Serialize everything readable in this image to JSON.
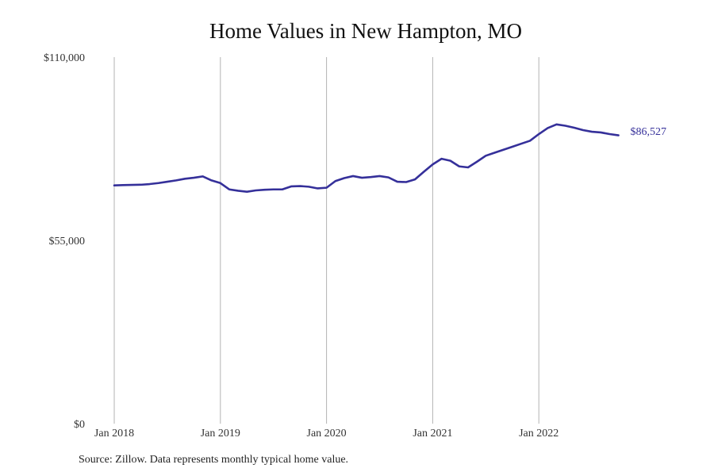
{
  "chart_data": {
    "type": "line",
    "title": "Home Values in New Hampton, MO",
    "xlabel": "",
    "ylabel": "",
    "x_start": "2018-01",
    "x_end": "2022-10",
    "x_ticks": [
      {
        "label": "Jan 2018",
        "date": "2018-01"
      },
      {
        "label": "Jan 2019",
        "date": "2019-01"
      },
      {
        "label": "Jan 2020",
        "date": "2020-01"
      },
      {
        "label": "Jan 2021",
        "date": "2021-01"
      },
      {
        "label": "Jan 2022",
        "date": "2022-01"
      }
    ],
    "y_ticks": [
      {
        "label": "$0",
        "value": 0
      },
      {
        "label": "$55,000",
        "value": 55000
      },
      {
        "label": "$110,000",
        "value": 110000
      }
    ],
    "ylim": [
      0,
      110000
    ],
    "grid": "vertical",
    "line_color": "#35309A",
    "series": [
      {
        "x": [
          "2018-01",
          "2018-02",
          "2018-03",
          "2018-04",
          "2018-05",
          "2018-06",
          "2018-07",
          "2018-08",
          "2018-09",
          "2018-10",
          "2018-11",
          "2018-12",
          "2019-01",
          "2019-02",
          "2019-03",
          "2019-04",
          "2019-05",
          "2019-06",
          "2019-07",
          "2019-08",
          "2019-09",
          "2019-10",
          "2019-11",
          "2019-12",
          "2020-01",
          "2020-02",
          "2020-03",
          "2020-04",
          "2020-05",
          "2020-06",
          "2020-07",
          "2020-08",
          "2020-09",
          "2020-10",
          "2020-11",
          "2020-12",
          "2021-01",
          "2021-02",
          "2021-03",
          "2021-04",
          "2021-05",
          "2021-06",
          "2021-07",
          "2021-08",
          "2021-09",
          "2021-10",
          "2021-11",
          "2021-12",
          "2022-01",
          "2022-02",
          "2022-03",
          "2022-04",
          "2022-05",
          "2022-06",
          "2022-07",
          "2022-08",
          "2022-09",
          "2022-10"
        ],
        "values": [
          71500,
          71600,
          71650,
          71700,
          71900,
          72200,
          72600,
          73000,
          73500,
          73800,
          74200,
          73000,
          72200,
          70300,
          69900,
          69600,
          70000,
          70200,
          70300,
          70300,
          71200,
          71300,
          71100,
          70600,
          70800,
          72800,
          73700,
          74300,
          73800,
          74000,
          74300,
          73900,
          72600,
          72500,
          73300,
          75600,
          77800,
          79500,
          78900,
          77200,
          76900,
          78600,
          80400,
          81300,
          82200,
          83100,
          84000,
          84900,
          86900,
          88700,
          89800,
          89400,
          88800,
          88100,
          87600,
          87400,
          86900,
          86527
        ]
      }
    ],
    "end_label": "$86,527"
  },
  "source_note": "Source: Zillow. Data represents monthly typical home value."
}
